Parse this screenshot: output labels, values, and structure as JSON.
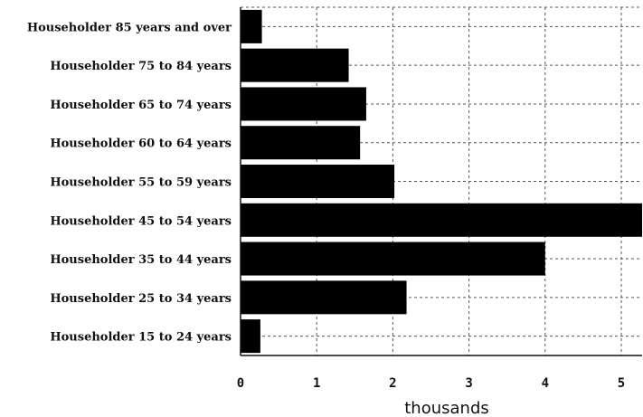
{
  "chart_data": {
    "type": "bar",
    "orientation": "horizontal",
    "categories": [
      "Householder 85 years and over",
      "Householder 75 to 84 years",
      "Householder 65 to 74 years",
      "Householder 60 to 64 years",
      "Householder 55 to 59 years",
      "Householder 45 to 54 years",
      "Householder 35 to 44 years",
      "Householder 25 to 34 years",
      "Householder 15 to 24 years"
    ],
    "values": [
      0.28,
      1.42,
      1.65,
      1.57,
      2.02,
      5.3,
      4.0,
      2.18,
      0.26
    ],
    "xlabel": "thousands",
    "xlim": [
      0,
      5.3
    ],
    "xticks": [
      "0",
      "1",
      "2",
      "3",
      "4",
      "5"
    ],
    "bar_color": "#000000",
    "grid": true
  }
}
